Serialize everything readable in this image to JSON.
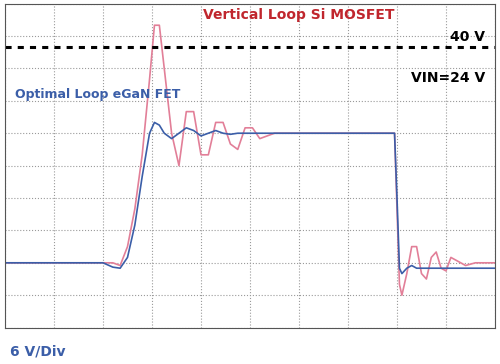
{
  "chart_data": {
    "type": "line",
    "x": [
      0,
      1,
      2,
      2.2,
      2.35,
      2.5,
      2.65,
      2.8,
      2.95,
      3.05,
      3.15,
      3.25,
      3.4,
      3.55,
      3.7,
      3.85,
      4.0,
      4.15,
      4.3,
      4.45,
      4.6,
      4.75,
      4.9,
      5.05,
      5.2,
      5.5,
      6,
      7,
      7.8,
      7.95,
      8.0,
      8.05,
      8.1,
      8.2,
      8.3,
      8.4,
      8.5,
      8.6,
      8.7,
      8.8,
      8.9,
      9.0,
      9.1,
      9.2,
      9.4,
      9.6,
      10
    ],
    "series": [
      {
        "name": "Vertical Loop Si MOSFET",
        "color": "#e27f98",
        "values": [
          0,
          0,
          0,
          0,
          -0.5,
          3,
          10,
          20,
          34,
          44,
          44,
          36,
          24,
          18,
          28,
          28,
          20,
          20,
          26,
          26,
          22,
          21,
          25,
          25,
          23,
          24,
          24,
          24,
          24,
          24,
          10,
          -4,
          -6,
          -2,
          3,
          3,
          -2,
          -3,
          1,
          2,
          -1,
          -1.5,
          1,
          0.5,
          -0.5,
          0,
          0
        ]
      },
      {
        "name": "Optimal Loop eGaN FET",
        "color": "#3b5ea8",
        "values": [
          0,
          0,
          0,
          -0.8,
          -1,
          1,
          7,
          16,
          24,
          26,
          25.5,
          24,
          23,
          24,
          25,
          24.5,
          23.5,
          24,
          24.5,
          24,
          23.8,
          24,
          24,
          24,
          24,
          24,
          24,
          24,
          24,
          24,
          12,
          -1,
          -2,
          -1,
          -0.5,
          -1,
          -1,
          -1,
          -1,
          -1,
          -1,
          -1,
          -1,
          -1,
          -1,
          -1,
          -1
        ]
      }
    ],
    "annotations": [
      {
        "text": "40 V",
        "value": 40
      },
      {
        "text": "VIN=24 V"
      },
      {
        "text": "6 V/Div"
      }
    ],
    "xlim": [
      0,
      10
    ],
    "xticks": [
      0,
      1,
      2,
      3,
      4,
      5,
      6,
      7,
      8,
      9,
      10
    ],
    "ylim": [
      -12,
      48
    ],
    "yticks": [
      -12,
      -6,
      0,
      6,
      12,
      18,
      24,
      30,
      36,
      42,
      48
    ],
    "grid": true,
    "tick_labels": false
  }
}
